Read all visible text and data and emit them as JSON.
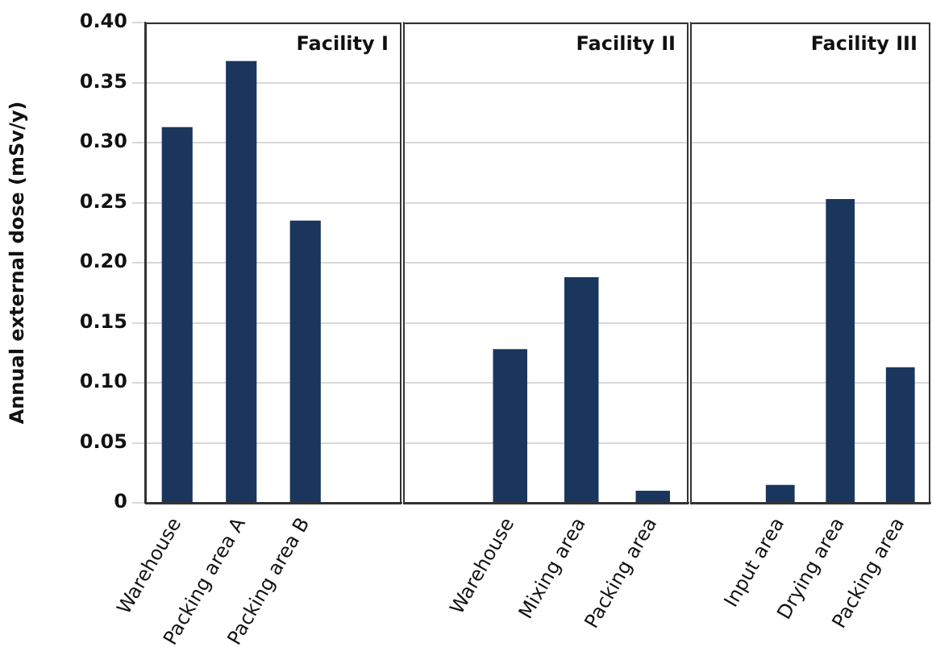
{
  "chart_data": [
    {
      "type": "bar",
      "title": "Facility I",
      "ylabel": "Annual external dose (mSv/y)",
      "categories": [
        "Warehouse",
        "Packing area A",
        "Packing area B",
        null
      ],
      "values": [
        0.313,
        0.368,
        0.235,
        null
      ],
      "color": "#1b365d",
      "ylim": [
        0,
        0.4
      ],
      "yticks": [
        {
          "value": 0,
          "label": "0"
        },
        {
          "value": 0.05,
          "label": "0.05"
        },
        {
          "value": 0.1,
          "label": "0.10"
        },
        {
          "value": 0.15,
          "label": "0.15"
        },
        {
          "value": 0.2,
          "label": "0.20"
        },
        {
          "value": 0.25,
          "label": "0.25"
        },
        {
          "value": 0.3,
          "label": "0.30"
        },
        {
          "value": 0.35,
          "label": "0.35"
        },
        {
          "value": 0.4,
          "label": "0.40"
        }
      ],
      "grid": "y"
    },
    {
      "type": "bar",
      "title": "Facility II",
      "categories": [
        null,
        "Warehouse",
        "Mixing area",
        "Packing area"
      ],
      "values": [
        null,
        0.128,
        0.188,
        0.01
      ],
      "color": "#1b365d",
      "ylim": [
        0,
        0.4
      ],
      "yticks": [
        0,
        0.05,
        0.1,
        0.15,
        0.2,
        0.25,
        0.3,
        0.35,
        0.4
      ],
      "grid": "y",
      "tick_labels": "x"
    },
    {
      "type": "bar",
      "title": "Facility III",
      "categories": [
        null,
        "Input area",
        "Drying area",
        "Packing area"
      ],
      "values": [
        null,
        0.015,
        0.253,
        0.113
      ],
      "color": "#1b365d",
      "ylim": [
        0,
        0.4
      ],
      "yticks": [
        0,
        0.05,
        0.1,
        0.15,
        0.2,
        0.25,
        0.3,
        0.35,
        0.4
      ],
      "grid": "y",
      "tick_labels": "x"
    }
  ]
}
